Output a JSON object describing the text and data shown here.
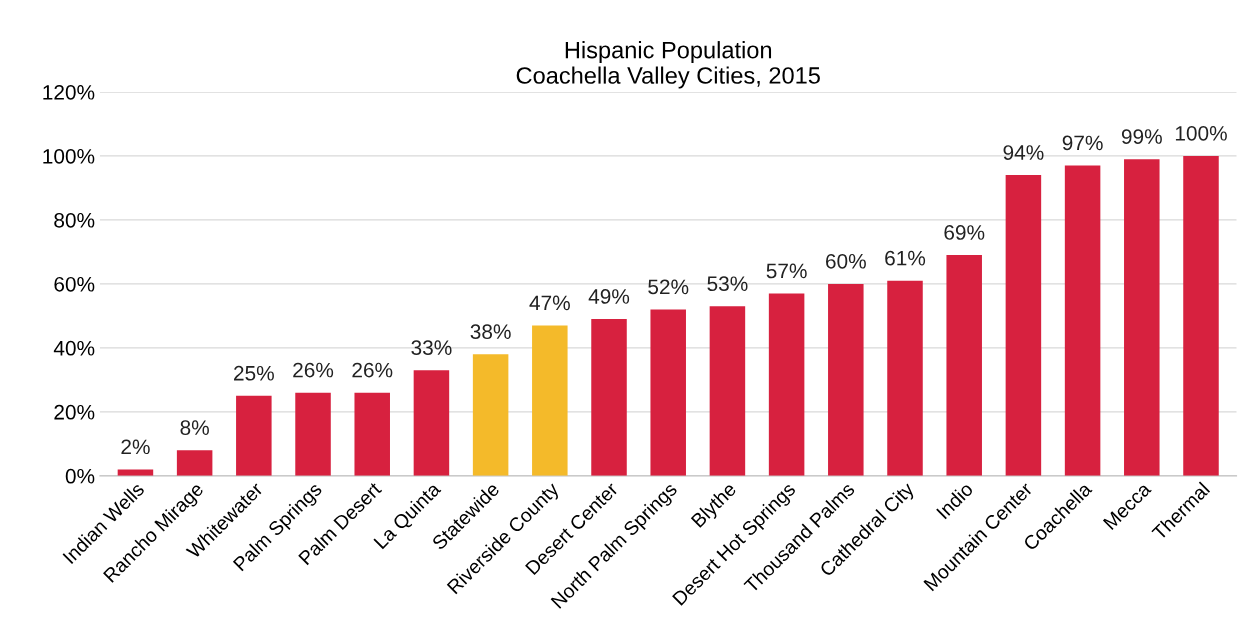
{
  "chart_data": {
    "type": "bar",
    "title": "Hispanic Population\nCoachella Valley Cities, 2015",
    "categories": [
      "Indian Wells",
      "Rancho Mirage",
      "Whitewater",
      "Palm Springs",
      "Palm Desert",
      "La Quinta",
      "Statewide",
      "Riverside County",
      "Desert Center",
      "North Palm Springs",
      "Blythe",
      "Desert Hot Springs",
      "Thousand Palms",
      "Cathedral City",
      "Indio",
      "Mountain Center",
      "Coachella",
      "Mecca",
      "Thermal"
    ],
    "values": [
      2,
      8,
      25,
      26,
      26,
      33,
      38,
      47,
      49,
      52,
      53,
      57,
      60,
      61,
      69,
      94,
      97,
      99,
      100
    ],
    "value_labels": [
      "2%",
      "8%",
      "25%",
      "26%",
      "26%",
      "33%",
      "38%",
      "47%",
      "49%",
      "52%",
      "53%",
      "57%",
      "60%",
      "61%",
      "69%",
      "94%",
      "97%",
      "99%",
      "100%"
    ],
    "colors": [
      "#d7213f",
      "#d7213f",
      "#d7213f",
      "#d7213f",
      "#d7213f",
      "#d7213f",
      "#f4ba2a",
      "#f4ba2a",
      "#d7213f",
      "#d7213f",
      "#d7213f",
      "#d7213f",
      "#d7213f",
      "#d7213f",
      "#d7213f",
      "#d7213f",
      "#d7213f",
      "#d7213f",
      "#d7213f"
    ],
    "ylim": [
      0,
      120
    ],
    "yticks": [
      {
        "value": 0,
        "label": "0%"
      },
      {
        "value": 20,
        "label": "20%"
      },
      {
        "value": 40,
        "label": "40%"
      },
      {
        "value": 60,
        "label": "60%"
      },
      {
        "value": 80,
        "label": "80%"
      },
      {
        "value": 100,
        "label": "100%"
      },
      {
        "value": 120,
        "label": "120%"
      }
    ],
    "grid": "y",
    "legend": false
  }
}
